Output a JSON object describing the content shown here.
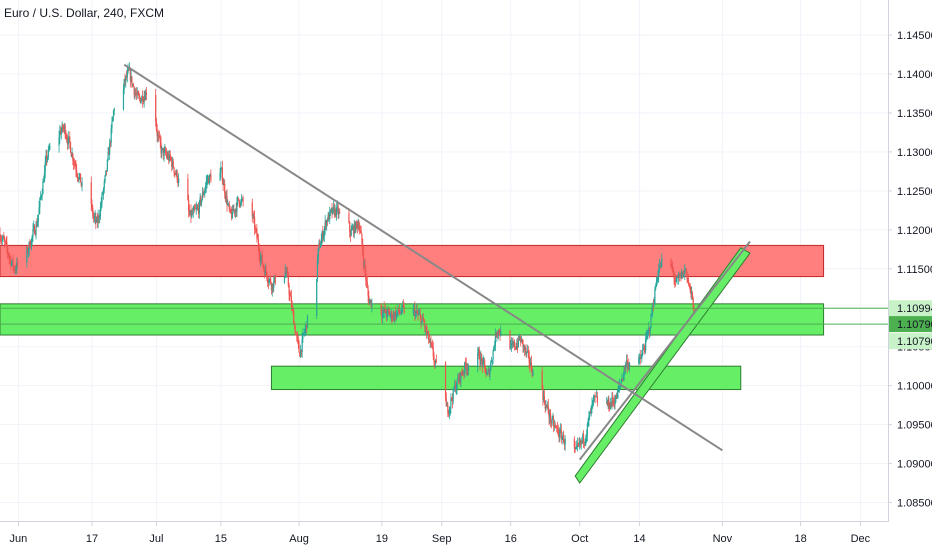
{
  "chart_data": {
    "type": "candlestick",
    "title": "Euro / U.S. Dollar, 240, FXCM",
    "y_axis": {
      "range": [
        1.0825,
        1.1495
      ],
      "ticks": [
        "1.14500",
        "1.14000",
        "1.13500",
        "1.13000",
        "1.12500",
        "1.12000",
        "1.11500",
        "1.11000",
        "1.10500",
        "1.10000",
        "1.09500",
        "1.09000",
        "1.08500"
      ],
      "tick_values": [
        1.145,
        1.14,
        1.135,
        1.13,
        1.125,
        1.12,
        1.115,
        1.11,
        1.105,
        1.1,
        1.095,
        1.09,
        1.085
      ]
    },
    "x_axis": {
      "range": [
        "2019-05-28",
        "2019-12-07"
      ],
      "ticks": [
        "Jun",
        "17",
        "Jul",
        "15",
        "Aug",
        "19",
        "Sep",
        "16",
        "Oct",
        "14",
        "Nov",
        "18",
        "Dec"
      ],
      "tick_dates": [
        "2019-06-01",
        "2019-06-17",
        "2019-07-01",
        "2019-07-15",
        "2019-08-01",
        "2019-08-19",
        "2019-09-01",
        "2019-09-16",
        "2019-10-01",
        "2019-10-14",
        "2019-11-01",
        "2019-11-18",
        "2019-12-01"
      ]
    },
    "price_path": [
      [
        "2019-05-28",
        1.1195
      ],
      [
        "2019-05-31",
        1.115
      ],
      [
        "2019-06-03",
        1.1175
      ],
      [
        "2019-06-05",
        1.121
      ],
      [
        "2019-06-07",
        1.129
      ],
      [
        "2019-06-09",
        1.1325
      ],
      [
        "2019-06-11",
        1.133
      ],
      [
        "2019-06-13",
        1.129
      ],
      [
        "2019-06-15",
        1.125
      ],
      [
        "2019-06-18",
        1.1205
      ],
      [
        "2019-06-20",
        1.127
      ],
      [
        "2019-06-22",
        1.137
      ],
      [
        "2019-06-25",
        1.14
      ],
      [
        "2019-06-27",
        1.1365
      ],
      [
        "2019-06-29",
        1.138
      ],
      [
        "2019-07-02",
        1.13
      ],
      [
        "2019-07-04",
        1.129
      ],
      [
        "2019-07-06",
        1.126
      ],
      [
        "2019-07-08",
        1.1215
      ],
      [
        "2019-07-10",
        1.1225
      ],
      [
        "2019-07-12",
        1.1265
      ],
      [
        "2019-07-15",
        1.1275
      ],
      [
        "2019-07-17",
        1.1215
      ],
      [
        "2019-07-19",
        1.124
      ],
      [
        "2019-07-22",
        1.121
      ],
      [
        "2019-07-24",
        1.1155
      ],
      [
        "2019-07-26",
        1.113
      ],
      [
        "2019-07-29",
        1.115
      ],
      [
        "2019-07-31",
        1.1075
      ],
      [
        "2019-08-01",
        1.104
      ],
      [
        "2019-08-03",
        1.109
      ],
      [
        "2019-08-05",
        1.117
      ],
      [
        "2019-08-07",
        1.1215
      ],
      [
        "2019-08-09",
        1.1225
      ],
      [
        "2019-08-12",
        1.1195
      ],
      [
        "2019-08-14",
        1.121
      ],
      [
        "2019-08-16",
        1.111
      ],
      [
        "2019-08-19",
        1.1095
      ],
      [
        "2019-08-21",
        1.109
      ],
      [
        "2019-08-23",
        1.1095
      ],
      [
        "2019-08-26",
        1.1095
      ],
      [
        "2019-08-28",
        1.108
      ],
      [
        "2019-08-30",
        1.104
      ],
      [
        "2019-09-02",
        1.0965
      ],
      [
        "2019-09-04",
        1.1
      ],
      [
        "2019-09-06",
        1.1025
      ],
      [
        "2019-09-09",
        1.104
      ],
      [
        "2019-09-11",
        1.101
      ],
      [
        "2019-09-13",
        1.1075
      ],
      [
        "2019-09-16",
        1.1045
      ],
      [
        "2019-09-18",
        1.106
      ],
      [
        "2019-09-20",
        1.103
      ],
      [
        "2019-09-23",
        1.0985
      ],
      [
        "2019-09-25",
        1.095
      ],
      [
        "2019-09-27",
        1.0935
      ],
      [
        "2019-09-30",
        1.091
      ],
      [
        "2019-10-02",
        1.0935
      ],
      [
        "2019-10-04",
        1.098
      ],
      [
        "2019-10-07",
        1.0975
      ],
      [
        "2019-10-09",
        1.0985
      ],
      [
        "2019-10-11",
        1.103
      ],
      [
        "2019-10-14",
        1.103
      ],
      [
        "2019-10-16",
        1.107
      ],
      [
        "2019-10-18",
        1.115
      ],
      [
        "2019-10-20",
        1.1165
      ],
      [
        "2019-10-22",
        1.113
      ],
      [
        "2019-10-24",
        1.115
      ],
      [
        "2019-10-26",
        1.109
      ],
      [
        "2019-10-27",
        1.108
      ]
    ],
    "horizontal_lines": [
      {
        "value": 1.10994,
        "label": "1.10994",
        "color": "#4caf50"
      },
      {
        "value": 1.1079,
        "label": "1.10790",
        "color": "#4caf50"
      }
    ],
    "price_badges": [
      {
        "value": 1.10994,
        "label": "1.10994",
        "color": "#c8f2c8"
      },
      {
        "value": 1.1079,
        "label": "1.10790",
        "color": "#4caf50"
      },
      {
        "value": 1.1079,
        "label": "1.10790",
        "color": "#c8f2c8",
        "offset": 1
      }
    ],
    "zones": [
      {
        "name": "resistance",
        "from": "2019-05-28",
        "to": "2019-11-23",
        "low": 1.114,
        "high": 1.118,
        "color": "#ff7f7f",
        "border": "#c62828"
      },
      {
        "name": "support-1",
        "from": "2019-05-28",
        "to": "2019-11-23",
        "low": 1.1065,
        "high": 1.1105,
        "color": "#66ee66",
        "border": "#2e7d32"
      },
      {
        "name": "support-2",
        "from": "2019-07-26",
        "to": "2019-11-05",
        "low": 1.0995,
        "high": 1.1025,
        "color": "#66ee66",
        "border": "#2e7d32"
      }
    ],
    "trendlines": [
      {
        "name": "descending-trendline",
        "from": [
          "2019-06-24",
          1.1412
        ],
        "to": [
          "2019-11-01",
          1.0917
        ],
        "color": "#888888"
      },
      {
        "name": "ascending-trendline-extension",
        "from": [
          "2019-10-01",
          1.0905
        ],
        "to": [
          "2019-11-07",
          1.1185
        ],
        "color": "#888888"
      }
    ],
    "channel": {
      "name": "ascending-channel",
      "points": [
        [
          "2019-09-30",
          1.0884
        ],
        [
          "2019-11-05",
          1.1177
        ],
        [
          "2019-11-07",
          1.117
        ],
        [
          "2019-10-01",
          1.0875
        ]
      ],
      "color": "#66ee66",
      "border": "#2e7d32"
    },
    "colors": {
      "up": "#26a69a",
      "down": "#ef5350",
      "grid": "#f0f3fa",
      "axis": "#d1d4dc"
    }
  }
}
